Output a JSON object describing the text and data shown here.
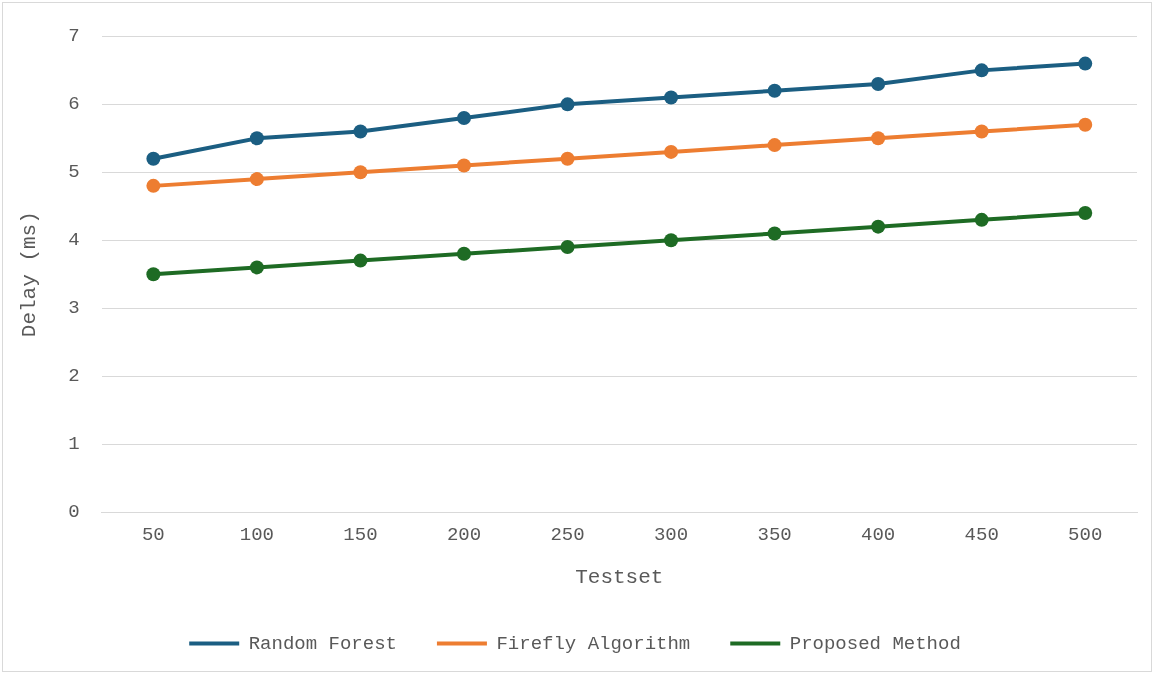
{
  "chart_data": {
    "type": "line",
    "xlabel": "Testset",
    "ylabel": "Delay (ms)",
    "categories": [
      "50",
      "100",
      "150",
      "200",
      "250",
      "300",
      "350",
      "400",
      "450",
      "500"
    ],
    "series": [
      {
        "name": "Random Forest",
        "color": "#1b5e82",
        "values": [
          5.2,
          5.5,
          5.6,
          5.8,
          6.0,
          6.1,
          6.2,
          6.3,
          6.5,
          6.6
        ]
      },
      {
        "name": "Firefly Algorithm",
        "color": "#ed7d31",
        "values": [
          4.8,
          4.9,
          5.0,
          5.1,
          5.2,
          5.3,
          5.4,
          5.5,
          5.6,
          5.7
        ]
      },
      {
        "name": "Proposed Method",
        "color": "#1e6b24",
        "values": [
          3.5,
          3.6,
          3.7,
          3.8,
          3.9,
          4.0,
          4.1,
          4.2,
          4.3,
          4.4
        ]
      }
    ],
    "ylim": [
      0,
      7
    ],
    "yticks": [
      0,
      1,
      2,
      3,
      4,
      5,
      6,
      7
    ],
    "grid": "y",
    "legend": "bottom",
    "marker": "circle",
    "line_style": "solid"
  }
}
